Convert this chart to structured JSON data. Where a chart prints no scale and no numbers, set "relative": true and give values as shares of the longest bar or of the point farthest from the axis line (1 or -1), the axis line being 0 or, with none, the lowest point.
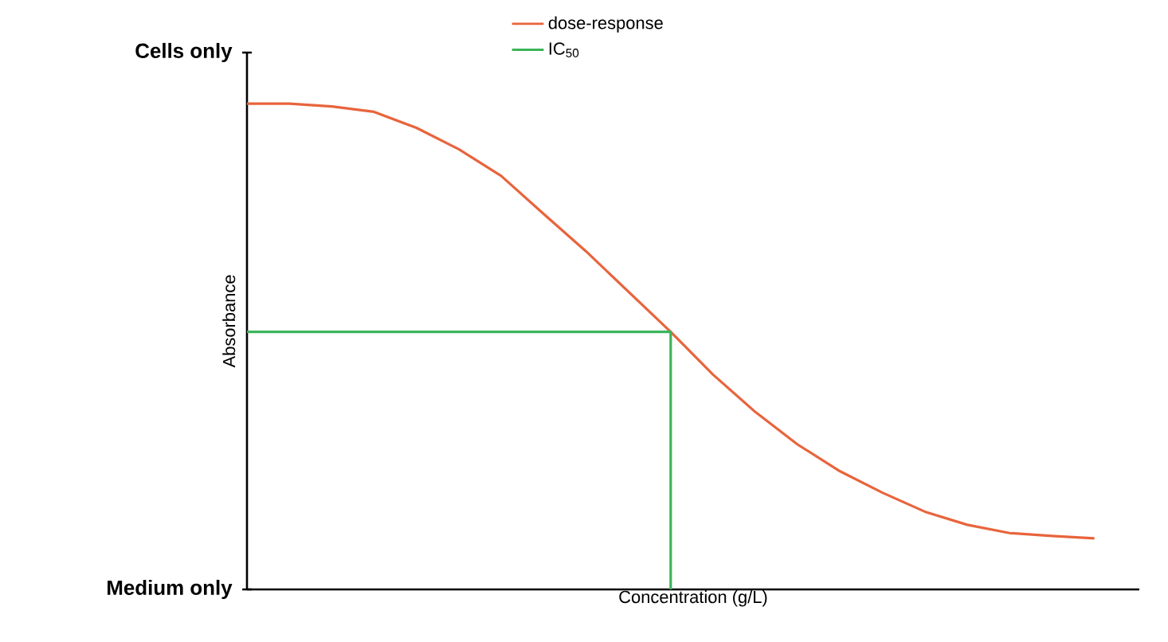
{
  "chart_data": {
    "type": "line",
    "relative": true,
    "xlabel": "Concentration (g/L)",
    "ylabel": "Absorbance",
    "categories": [
      null,
      null,
      null,
      null,
      null,
      null,
      null,
      null,
      null,
      null,
      null,
      null,
      null,
      null,
      null,
      null,
      null,
      null,
      null,
      null,
      null
    ],
    "series": [
      {
        "name": "dose-response",
        "color": "#e8643c",
        "values": [
          1,
          1,
          0.994,
          0.983,
          0.95,
          0.906,
          0.851,
          0.773,
          0.696,
          0.613,
          0.53,
          0.442,
          0.365,
          0.298,
          0.243,
          0.199,
          0.16,
          0.133,
          0.116,
          0.11,
          0.105
        ]
      },
      {
        "name": "IC$_{50}$",
        "color": "#3cb45a",
        "type": "step",
        "values": [
          0.53,
          0.53,
          0.53,
          0.53,
          0.53,
          0.53,
          0.53,
          0.53,
          0.53,
          0.53,
          0,
          null,
          null,
          null,
          null,
          null,
          null,
          null,
          null,
          null,
          null
        ]
      }
    ],
    "annotations": [
      "Cells only",
      "Medium only"
    ],
    "legend": "top",
    "marker": "none",
    "line_style": "solid"
  }
}
